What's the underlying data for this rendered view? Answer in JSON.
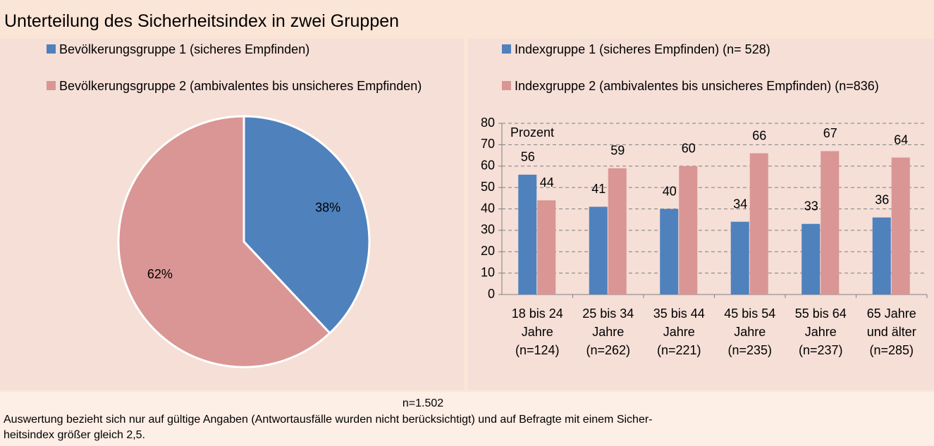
{
  "title": "Unterteilung des Sicherheitsindex in zwei Gruppen",
  "chart_data": [
    {
      "type": "pie",
      "categories": [
        "Bevölkerungsgruppe 1 (sicheres Empfinden)",
        "Bevölkerungsgruppe 2 (ambivalentes bis unsicheres Empfinden)"
      ],
      "values": [
        38,
        62
      ],
      "value_labels": [
        "38%",
        "62%"
      ],
      "colors": [
        "#4f81bd",
        "#d99694"
      ]
    },
    {
      "type": "bar",
      "y_label": "Prozent",
      "categories": [
        "18 bis 24\nJahre\n(n=124)",
        "25 bis 34\nJahre\n(n=262)",
        "35 bis 44\nJahre\n(n=221)",
        "45 bis 54\nJahre\n(n=235)",
        "55 bis 64\nJahre\n(n=237)",
        "65 Jahre\nund älter\n(n=285)"
      ],
      "series": [
        {
          "name": "Indexgruppe 1 (sicheres Empfinden) (n= 528)",
          "color": "#4f81bd",
          "values": [
            56,
            41,
            40,
            34,
            33,
            36
          ]
        },
        {
          "name": "Indexgruppe 2 (ambivalentes bis unsicheres Empfinden) (n=836)",
          "color": "#d99694",
          "values": [
            44,
            59,
            60,
            66,
            67,
            64
          ]
        }
      ],
      "ylim": [
        0,
        80
      ],
      "yticks": [
        0,
        10,
        20,
        30,
        40,
        50,
        60,
        70,
        80
      ],
      "grid": true
    }
  ],
  "footer": {
    "n": "n=1.502",
    "note": "Auswertung bezieht sich nur auf gültige Angaben (Antwortausfälle wurden nicht berücksichtigt)  und auf Befragte mit einem Sicher-\nheitsindex größer gleich 2,5."
  }
}
